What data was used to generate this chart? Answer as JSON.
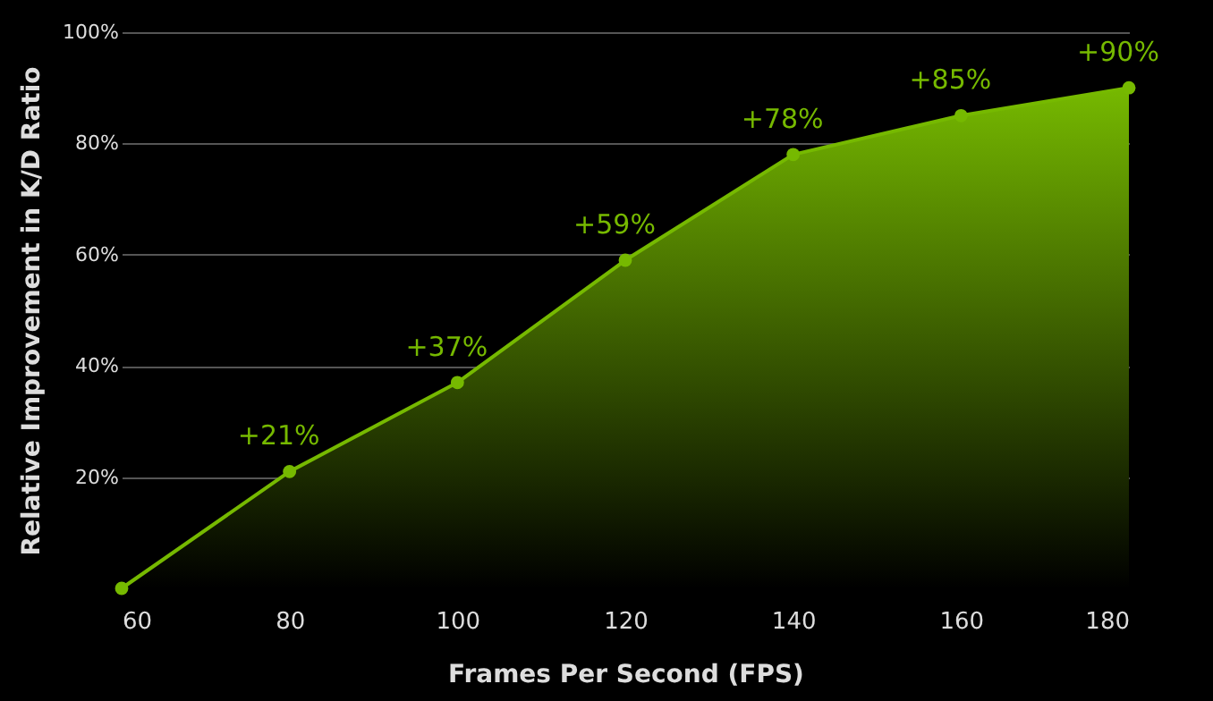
{
  "chart_data": {
    "type": "area",
    "xlabel": "Frames Per Second (FPS)",
    "ylabel": "Relative Improvement in K/D Ratio",
    "x": [
      60,
      80,
      100,
      120,
      140,
      160,
      180
    ],
    "series": [
      {
        "color": "#76b900",
        "values": [
          0,
          21,
          37,
          59,
          78,
          85,
          90
        ],
        "value_labels": [
          null,
          "+21%",
          "+37%",
          "+59%",
          "+78%",
          "+85%",
          "+90%"
        ]
      }
    ],
    "xlim": [
      60,
      180
    ],
    "xticks": [
      60,
      80,
      100,
      120,
      140,
      160,
      180
    ],
    "ylim": [
      0,
      100
    ],
    "yticks": [
      {
        "value": 20,
        "label": "20%"
      },
      {
        "value": 40,
        "label": "40%"
      },
      {
        "value": 60,
        "label": "60%"
      },
      {
        "value": 80,
        "label": "80%"
      },
      {
        "value": 100,
        "label": "100%"
      }
    ],
    "grid": "y",
    "marker": "circle",
    "line_style": "solid"
  }
}
